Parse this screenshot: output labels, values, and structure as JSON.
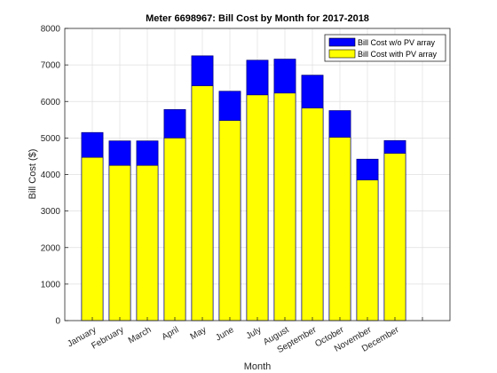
{
  "chart_data": {
    "type": "bar",
    "title": "Meter 6698967: Bill Cost by Month for 2017-2018",
    "xlabel": "Month",
    "ylabel": "Bill Cost ($)",
    "ylim": [
      0,
      8000
    ],
    "yticks": [
      0,
      1000,
      2000,
      3000,
      4000,
      5000,
      6000,
      7000,
      8000
    ],
    "xlim": [
      0,
      14
    ],
    "grid": true,
    "legend_position": "top-right",
    "categories": [
      "January",
      "February",
      "March",
      "April",
      "May",
      "June",
      "July",
      "August",
      "September",
      "October",
      "November",
      "December"
    ],
    "series": [
      {
        "name": "Bill Cost w/o PV array",
        "color": "#0000ff",
        "values": [
          5150,
          4920,
          4920,
          5780,
          7250,
          6280,
          7130,
          7160,
          6720,
          5750,
          4420,
          4930
        ]
      },
      {
        "name": "Bill Cost with PV array",
        "color": "#ffff00",
        "values": [
          4470,
          4250,
          4250,
          5000,
          6430,
          5480,
          6180,
          6230,
          5820,
          5020,
          3850,
          4580
        ]
      }
    ]
  }
}
